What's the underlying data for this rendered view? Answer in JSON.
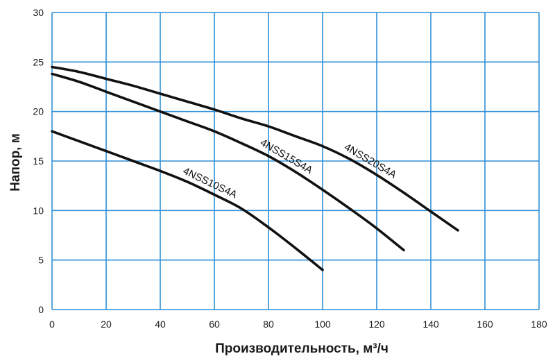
{
  "chart_data": {
    "type": "line",
    "title": "",
    "xlabel": "Производительность, м³/ч",
    "ylabel": "Напор, м",
    "xlim": [
      0,
      180
    ],
    "ylim": [
      0,
      30
    ],
    "x_ticks": [
      "0",
      "20",
      "40",
      "60",
      "80",
      "100",
      "120",
      "140",
      "160",
      "180"
    ],
    "y_ticks": [
      "0",
      "5",
      "10",
      "15",
      "20",
      "25",
      "30"
    ],
    "grid": true,
    "legend": "inline labels",
    "colors": {
      "grid": "#2f8fd6",
      "curve": "#111111"
    },
    "series": [
      {
        "name": "4NSS10S4A",
        "x": [
          0,
          10,
          20,
          30,
          40,
          50,
          60,
          70,
          80,
          90,
          100
        ],
        "y": [
          18,
          17,
          16,
          15,
          14,
          12.9,
          11.6,
          10.2,
          8.3,
          6.2,
          4
        ]
      },
      {
        "name": "4NSS15S4A",
        "x": [
          0,
          10,
          20,
          30,
          40,
          50,
          60,
          70,
          80,
          90,
          100,
          110,
          120,
          130
        ],
        "y": [
          23.8,
          23,
          22,
          21,
          20,
          19,
          18,
          16.8,
          15.5,
          13.9,
          12.1,
          10.2,
          8.2,
          6
        ]
      },
      {
        "name": "4NSS20S4A",
        "x": [
          0,
          10,
          20,
          30,
          40,
          50,
          60,
          70,
          80,
          90,
          100,
          110,
          120,
          130,
          140,
          150
        ],
        "y": [
          24.5,
          24,
          23.3,
          22.6,
          21.8,
          21,
          20.2,
          19.3,
          18.5,
          17.5,
          16.5,
          15.2,
          13.6,
          11.8,
          9.9,
          8
        ]
      }
    ]
  }
}
